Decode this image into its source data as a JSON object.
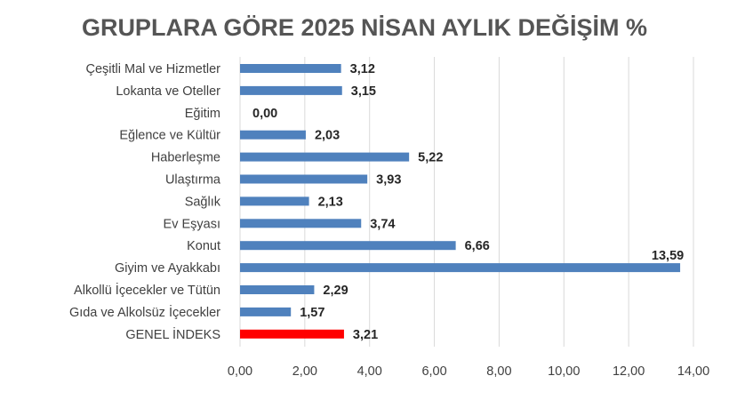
{
  "chart_data": {
    "type": "bar",
    "orientation": "horizontal",
    "title": "GRUPLARA GÖRE 2025 NİSAN AYLIK DEĞİŞİM %",
    "xlabel": "",
    "ylabel": "",
    "xlim": [
      0,
      14
    ],
    "x_ticks": [
      0,
      2,
      4,
      6,
      8,
      10,
      12,
      14
    ],
    "x_tick_labels": [
      "0,00",
      "2,00",
      "4,00",
      "6,00",
      "8,00",
      "10,00",
      "12,00",
      "14,00"
    ],
    "grid": true,
    "legend": "none",
    "categories": [
      "Çeşitli Mal ve Hizmetler",
      "Lokanta ve Oteller",
      "Eğitim",
      "Eğlence ve Kültür",
      "Haberleşme",
      "Ulaştırma",
      "Sağlık",
      "Ev Eşyası",
      "Konut",
      "Giyim ve Ayakkabı",
      "Alkollü İçecekler ve Tütün",
      "Gıda ve Alkolsüz İçecekler",
      "GENEL İNDEKS"
    ],
    "values": [
      3.12,
      3.15,
      0.0,
      2.03,
      5.22,
      3.93,
      2.13,
      3.74,
      6.66,
      13.59,
      2.29,
      1.57,
      3.21
    ],
    "value_labels": [
      "3,12",
      "3,15",
      "0,00",
      "2,03",
      "5,22",
      "3,93",
      "2,13",
      "3,74",
      "6,66",
      "13,59",
      "2,29",
      "1,57",
      "3,21"
    ],
    "colors": {
      "bar": "#4F81BD",
      "highlight_bar": "#FF0000",
      "highlight_category": "GENEL İNDEKS",
      "grid": "#D9D9D9",
      "title": "#555555"
    }
  }
}
